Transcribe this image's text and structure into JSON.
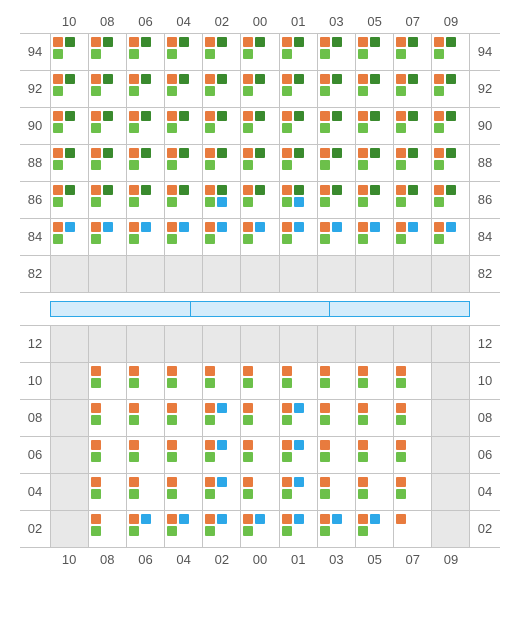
{
  "colors": {
    "orange": "#e87b3e",
    "darkgreen": "#3a8a2e",
    "lightgreen": "#6cc04a",
    "blue": "#2ca8e8",
    "graycell": "#e8e8e8",
    "gridline": "#c5c5c5",
    "textcolor": "#555555",
    "sep_bg": "#d4ecfb",
    "sep_border": "#2ca8e8"
  },
  "columns": [
    "10",
    "08",
    "06",
    "04",
    "02",
    "00",
    "01",
    "03",
    "05",
    "07",
    "09"
  ],
  "top": {
    "rows": [
      "94",
      "92",
      "90",
      "88",
      "86",
      "84",
      "82"
    ],
    "cells": [
      [
        [
          "o",
          "d",
          "g"
        ],
        [
          "o",
          "d",
          "g"
        ],
        [
          "o",
          "d",
          "g"
        ],
        [
          "o",
          "d",
          "g"
        ],
        [
          "o",
          "d",
          "g"
        ],
        [
          "o",
          "d",
          "g"
        ],
        [
          "o",
          "d",
          "g"
        ],
        [
          "o",
          "d",
          "g"
        ],
        [
          "o",
          "d",
          "g"
        ],
        [
          "o",
          "d",
          "g"
        ],
        [
          "o",
          "d",
          "g"
        ]
      ],
      [
        [
          "o",
          "d",
          "g"
        ],
        [
          "o",
          "d",
          "g"
        ],
        [
          "o",
          "d",
          "g"
        ],
        [
          "o",
          "d",
          "g"
        ],
        [
          "o",
          "d",
          "g"
        ],
        [
          "o",
          "d",
          "g"
        ],
        [
          "o",
          "d",
          "g"
        ],
        [
          "o",
          "d",
          "g"
        ],
        [
          "o",
          "d",
          "g"
        ],
        [
          "o",
          "d",
          "g"
        ],
        [
          "o",
          "d",
          "g"
        ]
      ],
      [
        [
          "o",
          "d",
          "g"
        ],
        [
          "o",
          "d",
          "g"
        ],
        [
          "o",
          "d",
          "g"
        ],
        [
          "o",
          "d",
          "g"
        ],
        [
          "o",
          "d",
          "g"
        ],
        [
          "o",
          "d",
          "g"
        ],
        [
          "o",
          "d",
          "g"
        ],
        [
          "o",
          "d",
          "g"
        ],
        [
          "o",
          "d",
          "g"
        ],
        [
          "o",
          "d",
          "g"
        ],
        [
          "o",
          "d",
          "g"
        ]
      ],
      [
        [
          "o",
          "d",
          "g"
        ],
        [
          "o",
          "d",
          "g"
        ],
        [
          "o",
          "d",
          "g"
        ],
        [
          "o",
          "d",
          "g"
        ],
        [
          "o",
          "d",
          "g"
        ],
        [
          "o",
          "d",
          "g"
        ],
        [
          "o",
          "d",
          "g"
        ],
        [
          "o",
          "d",
          "g"
        ],
        [
          "o",
          "d",
          "g"
        ],
        [
          "o",
          "d",
          "g"
        ],
        [
          "o",
          "d",
          "g"
        ]
      ],
      [
        [
          "o",
          "d",
          "g"
        ],
        [
          "o",
          "d",
          "g"
        ],
        [
          "o",
          "d",
          "g"
        ],
        [
          "o",
          "d",
          "g"
        ],
        [
          "o",
          "d",
          "g",
          "b"
        ],
        [
          "o",
          "d",
          "g"
        ],
        [
          "o",
          "d",
          "g",
          "b"
        ],
        [
          "o",
          "d",
          "g"
        ],
        [
          "o",
          "d",
          "g"
        ],
        [
          "o",
          "d",
          "g"
        ],
        [
          "o",
          "d",
          "g"
        ]
      ],
      [
        [
          "o",
          "b",
          "g"
        ],
        [
          "o",
          "b",
          "g"
        ],
        [
          "o",
          "b",
          "g"
        ],
        [
          "o",
          "b",
          "g"
        ],
        [
          "o",
          "b",
          "g"
        ],
        [
          "o",
          "b",
          "g"
        ],
        [
          "o",
          "b",
          "g"
        ],
        [
          "o",
          "b",
          "g"
        ],
        [
          "o",
          "b",
          "g"
        ],
        [
          "o",
          "b",
          "g"
        ],
        [
          "o",
          "b",
          "g"
        ]
      ],
      [
        [
          "GRAY"
        ],
        [
          "GRAY"
        ],
        [
          "GRAY"
        ],
        [
          "GRAY"
        ],
        [
          "GRAY"
        ],
        [
          "GRAY"
        ],
        [
          "GRAY"
        ],
        [
          "GRAY"
        ],
        [
          "GRAY"
        ],
        [
          "GRAY"
        ],
        [
          "GRAY"
        ]
      ]
    ]
  },
  "separator_segments": 3,
  "bottom": {
    "rows": [
      "12",
      "10",
      "08",
      "06",
      "04",
      "02"
    ],
    "cells": [
      [
        [
          "GRAY"
        ],
        [
          "GRAY"
        ],
        [
          "GRAY"
        ],
        [
          "GRAY"
        ],
        [
          "GRAY"
        ],
        [
          "GRAY"
        ],
        [
          "GRAY"
        ],
        [
          "GRAY"
        ],
        [
          "GRAY"
        ],
        [
          "GRAY"
        ],
        [
          "GRAY"
        ]
      ],
      [
        [
          "GRAY"
        ],
        [
          "o",
          "e",
          "g"
        ],
        [
          "o",
          "e",
          "g"
        ],
        [
          "o",
          "e",
          "g"
        ],
        [
          "o",
          "e",
          "g"
        ],
        [
          "o",
          "e",
          "g"
        ],
        [
          "o",
          "e",
          "g"
        ],
        [
          "o",
          "e",
          "g"
        ],
        [
          "o",
          "e",
          "g"
        ],
        [
          "o",
          "e",
          "g"
        ],
        [
          "GRAY"
        ]
      ],
      [
        [
          "GRAY"
        ],
        [
          "o",
          "e",
          "g"
        ],
        [
          "o",
          "e",
          "g"
        ],
        [
          "o",
          "e",
          "g"
        ],
        [
          "o",
          "b",
          "g"
        ],
        [
          "o",
          "e",
          "g"
        ],
        [
          "o",
          "b",
          "g"
        ],
        [
          "o",
          "e",
          "g"
        ],
        [
          "o",
          "e",
          "g"
        ],
        [
          "o",
          "e",
          "g"
        ],
        [
          "GRAY"
        ]
      ],
      [
        [
          "GRAY"
        ],
        [
          "o",
          "e",
          "g"
        ],
        [
          "o",
          "e",
          "g"
        ],
        [
          "o",
          "e",
          "g"
        ],
        [
          "o",
          "b",
          "g"
        ],
        [
          "o",
          "e",
          "g"
        ],
        [
          "o",
          "b",
          "g"
        ],
        [
          "o",
          "e",
          "g"
        ],
        [
          "o",
          "e",
          "g"
        ],
        [
          "o",
          "e",
          "g"
        ],
        [
          "GRAY"
        ]
      ],
      [
        [
          "GRAY"
        ],
        [
          "o",
          "e",
          "g"
        ],
        [
          "o",
          "e",
          "g"
        ],
        [
          "o",
          "e",
          "g"
        ],
        [
          "o",
          "b",
          "g"
        ],
        [
          "o",
          "e",
          "g"
        ],
        [
          "o",
          "b",
          "g"
        ],
        [
          "o",
          "e",
          "g"
        ],
        [
          "o",
          "e",
          "g"
        ],
        [
          "o",
          "e",
          "g"
        ],
        [
          "GRAY"
        ]
      ],
      [
        [
          "GRAY"
        ],
        [
          "o",
          "e",
          "g"
        ],
        [
          "o",
          "b",
          "g"
        ],
        [
          "o",
          "b",
          "g"
        ],
        [
          "o",
          "b",
          "g"
        ],
        [
          "o",
          "b",
          "g"
        ],
        [
          "o",
          "b",
          "g"
        ],
        [
          "o",
          "b",
          "g"
        ],
        [
          "o",
          "b",
          "g"
        ],
        [
          "o",
          "e"
        ],
        [
          "GRAY"
        ]
      ]
    ]
  }
}
